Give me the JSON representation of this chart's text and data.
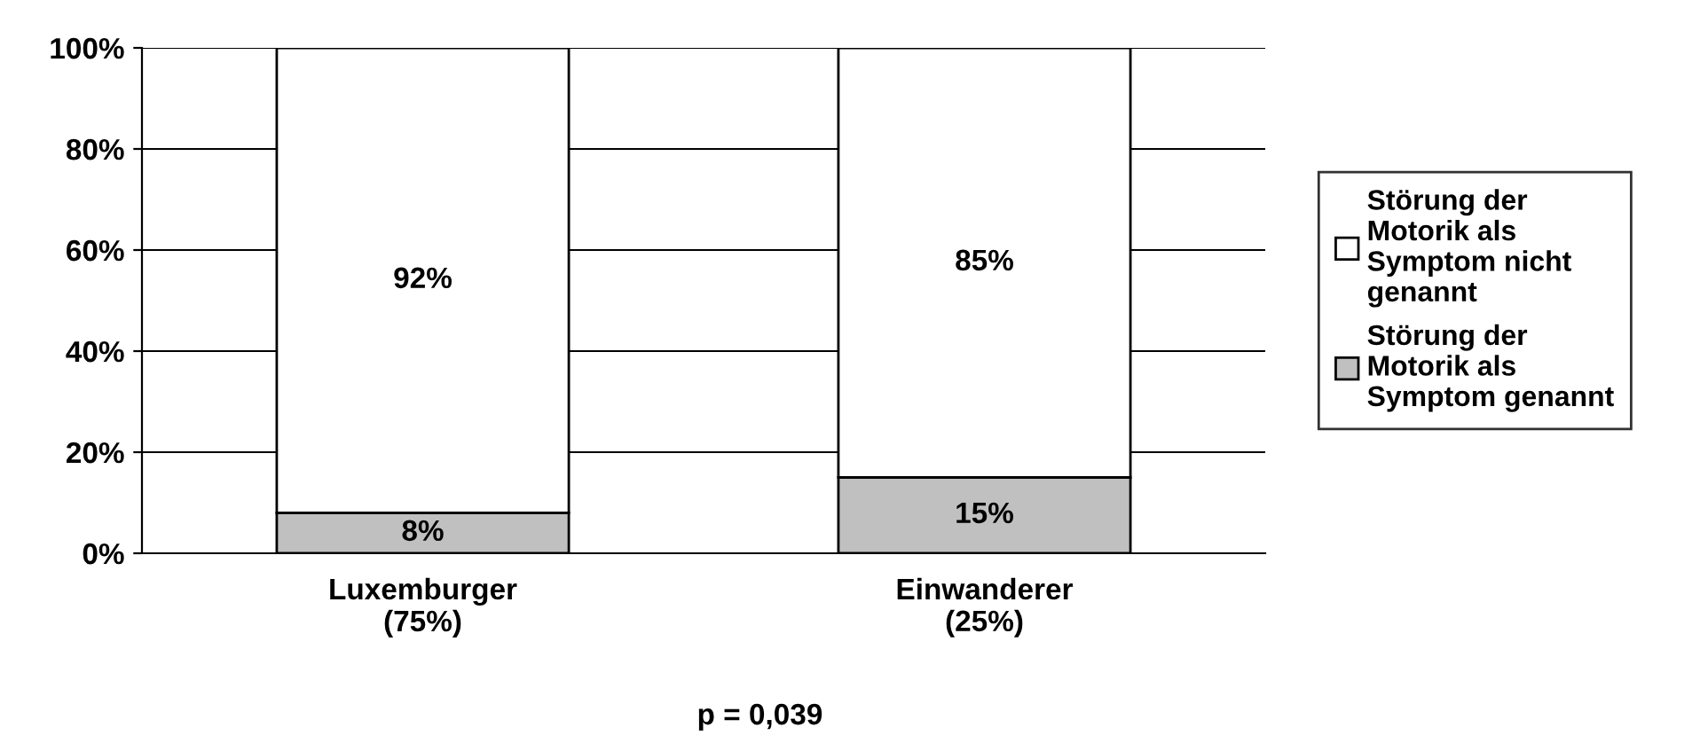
{
  "chart_data": {
    "type": "bar",
    "stacked": true,
    "categories": [
      "Luxemburger\n(75%)",
      "Einwanderer\n(25%)"
    ],
    "series": [
      {
        "name": "Störung der\nMotorik als\nSymptom genannt",
        "color": "#c0c0c0",
        "values": [
          8,
          15
        ],
        "value_labels": [
          "8%",
          "15%"
        ]
      },
      {
        "name": "Störung der\nMotorik als\nSymptom nicht\ngenannt",
        "color": "#ffffff",
        "values": [
          92,
          85
        ],
        "value_labels": [
          "92%",
          "85%"
        ]
      }
    ],
    "ylim": [
      0,
      100
    ],
    "yticks": [
      {
        "value": 0,
        "label": "0%"
      },
      {
        "value": 20,
        "label": "20%"
      },
      {
        "value": 40,
        "label": "40%"
      },
      {
        "value": 60,
        "label": "60%"
      },
      {
        "value": 80,
        "label": "80%"
      },
      {
        "value": 100,
        "label": "100%"
      }
    ],
    "grid": "y",
    "legend": "right",
    "annotations": [
      "p = 0,039"
    ]
  }
}
